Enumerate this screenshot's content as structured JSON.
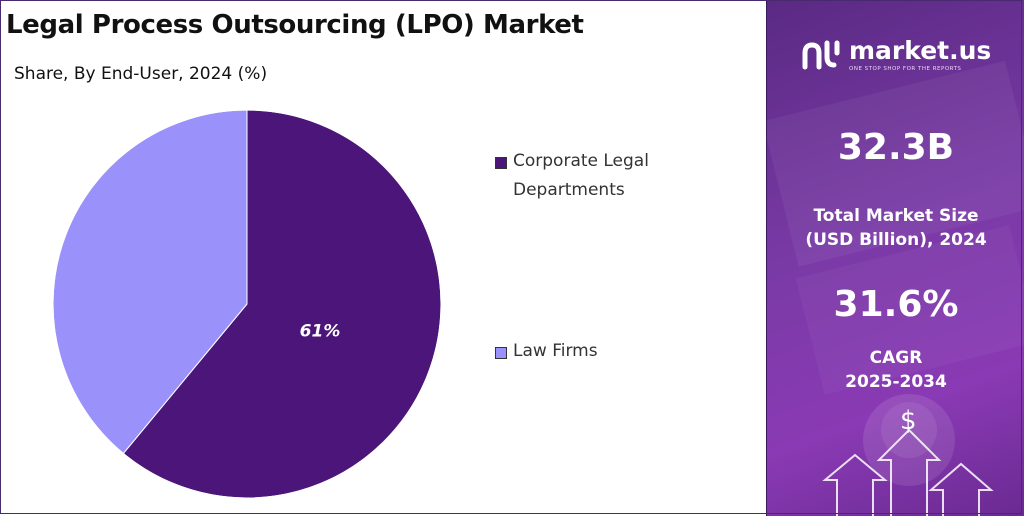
{
  "header": {
    "title": "Legal Process Outsourcing (LPO) Market",
    "subtitle": "Share, By End-User, 2024 (%)"
  },
  "chart_data": {
    "type": "pie",
    "categories": [
      "Corporate Legal Departments",
      "Law Firms"
    ],
    "values": [
      61,
      39
    ],
    "colors": [
      "#4b1579",
      "#9b91fb"
    ],
    "data_labels": [
      "61%",
      ""
    ],
    "legend_position": "right"
  },
  "legend": {
    "items": [
      {
        "label_line1": "Corporate Legal",
        "label_line2": "Departments",
        "color": "#4b1579"
      },
      {
        "label_line1": "Law Firms",
        "label_line2": "",
        "color": "#9b91fb"
      }
    ]
  },
  "sidebar": {
    "brand": {
      "name": "market.us",
      "tagline": "ONE STOP SHOP FOR THE REPORTS"
    },
    "market_size": {
      "value": "32.3B",
      "label_line1": "Total Market Size",
      "label_line2": "(USD Billion), 2024"
    },
    "cagr": {
      "value": "31.6%",
      "label_line1": "CAGR",
      "label_line2": "2025-2034"
    },
    "decor_icon": {
      "symbol": "$"
    }
  }
}
